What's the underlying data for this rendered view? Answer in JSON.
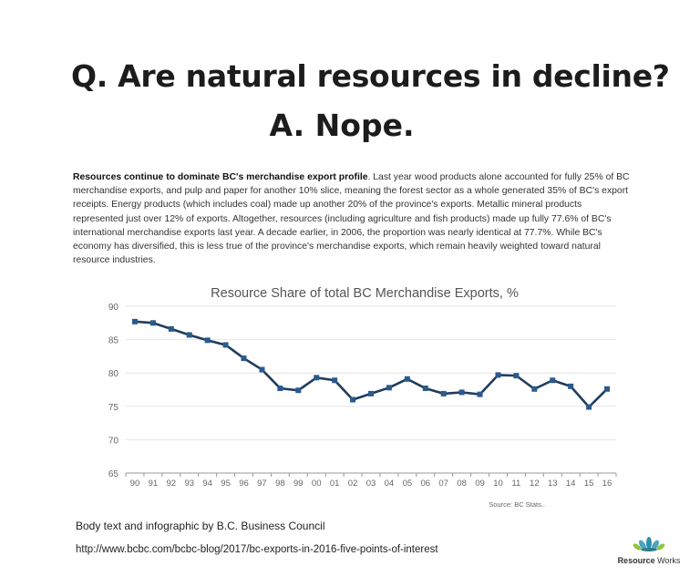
{
  "headline": {
    "question": "Q. Are natural resources in decline?",
    "answer": "A. Nope."
  },
  "body": {
    "lead": "Resources continue to dominate BC's merchandise export profile",
    "text": ".  Last year wood products alone accounted for fully 25% of BC merchandise exports, and pulp and paper for another 10% slice, meaning the forest sector as a whole generated 35% of BC's export receipts.  Energy products (which includes coal) made up another 20% of the province's exports.  Metallic mineral products represented just over 12% of exports.  Altogether, resources (including agriculture and fish products) made up fully 77.6% of BC's international merchandise exports last year.  A decade earlier, in 2006, the proportion was nearly identical at 77.7%.   While BC's economy has diversified, this is less true of the province's merchandise exports, which remain heavily weighted toward natural resource industries."
  },
  "chart_data": {
    "type": "line",
    "title": "Resource Share of total BC Merchandise Exports, %",
    "source": "Source:  BC Stats..",
    "xlabel": "",
    "ylabel": "",
    "categories": [
      "90",
      "91",
      "92",
      "93",
      "94",
      "95",
      "96",
      "97",
      "98",
      "99",
      "00",
      "01",
      "02",
      "03",
      "04",
      "05",
      "06",
      "07",
      "08",
      "09",
      "10",
      "11",
      "12",
      "13",
      "14",
      "15",
      "16"
    ],
    "series": [
      {
        "name": "Resource share",
        "color": "#2a5a8c",
        "values": [
          87.7,
          87.5,
          86.6,
          85.7,
          84.9,
          84.2,
          82.2,
          80.5,
          77.7,
          77.4,
          79.3,
          78.9,
          76.0,
          76.9,
          77.8,
          79.1,
          77.7,
          76.9,
          77.1,
          76.8,
          79.7,
          79.6,
          77.6,
          78.9,
          78.0,
          74.9,
          77.6
        ]
      }
    ],
    "ylim": [
      65,
      90
    ],
    "yticks": [
      65,
      70,
      75,
      80,
      85,
      90
    ],
    "grid": true
  },
  "footer": {
    "credit": "Body text and infographic by B.C. Business Council",
    "url": "http://www.bcbc.com/bcbc-blog/2017/bc-exports-in-2016-five-points-of-interest"
  },
  "logo": {
    "text_bold": "Resource",
    "text_light": " Works"
  }
}
